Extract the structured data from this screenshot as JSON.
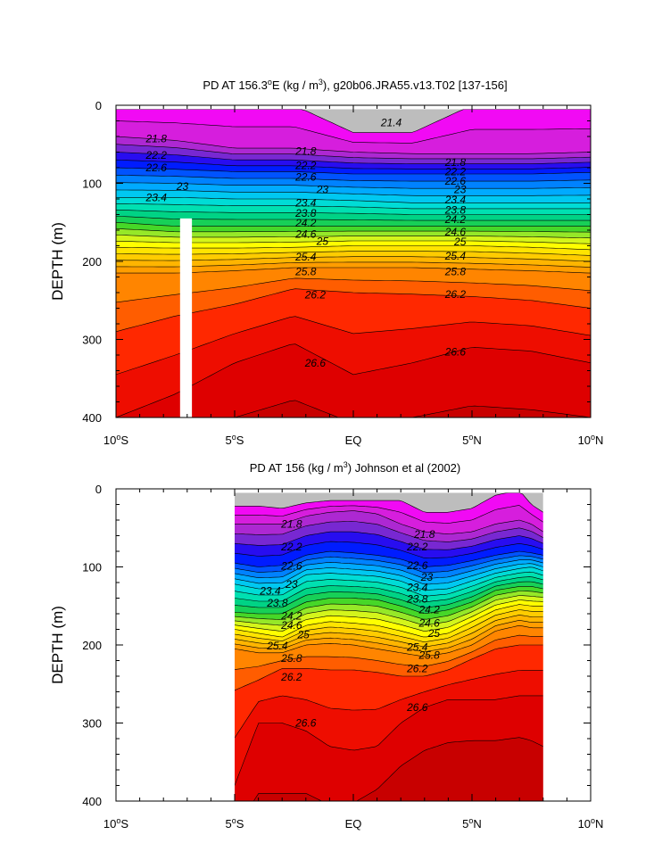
{
  "chart_data": [
    {
      "type": "heatmap",
      "title_main": "PD AT 156.3",
      "title_deg": "o",
      "title_mid": "E (kg / m",
      "title_exp": "3",
      "title_rest": "), g20b06.JRA55.v13.T02 [137-156]",
      "ylabel": "DEPTH (m)",
      "xlim": [
        -10,
        10
      ],
      "ylim": [
        0,
        400
      ],
      "x_ticks": [
        {
          "value": -10,
          "num": "10",
          "deg": "o",
          "hemi": "S"
        },
        {
          "value": -5,
          "num": "5",
          "deg": "o",
          "hemi": "S"
        },
        {
          "value": 0,
          "num": "EQ",
          "deg": "",
          "hemi": ""
        },
        {
          "value": 5,
          "num": "5",
          "deg": "o",
          "hemi": "N"
        },
        {
          "value": 10,
          "num": "10",
          "deg": "o",
          "hemi": "N"
        }
      ],
      "y_ticks": [
        "0",
        "100",
        "200",
        "300",
        "400"
      ],
      "data_x_range": [
        -10,
        10
      ],
      "data_top_depth": 5,
      "gap_band": {
        "x": [
          -7.3,
          -6.8
        ],
        "y": [
          145,
          400
        ]
      },
      "contour_levels": [
        21.4,
        21.6,
        21.8,
        22,
        22.2,
        22.4,
        22.6,
        22.8,
        23,
        23.2,
        23.4,
        23.6,
        23.8,
        24,
        24.2,
        24.4,
        24.6,
        24.8,
        25,
        25.2,
        25.4,
        25.6,
        25.8,
        26,
        26.2,
        26.4,
        26.6,
        26.8
      ],
      "depth_profile": {
        "x": [
          -10,
          -7.5,
          -5,
          -2.5,
          0,
          2.5,
          5,
          7.5,
          10
        ],
        "anchors": [
          {
            "level": 21.4,
            "depths": [
              0,
              0,
              0,
              0,
              35,
              35,
              0,
              0,
              0
            ]
          },
          {
            "level": 21.8,
            "depths": [
              40,
              45,
              55,
              55,
              60,
              62,
              62,
              62,
              60
            ]
          },
          {
            "level": 22.6,
            "depths": [
              80,
              82,
              85,
              85,
              88,
              88,
              88,
              88,
              86
            ]
          },
          {
            "level": 23.4,
            "depths": [
              118,
              118,
              120,
              120,
              122,
              125,
              125,
              125,
              125
            ]
          },
          {
            "level": 24.2,
            "depths": [
              150,
              155,
              155,
              155,
              155,
              155,
              155,
              155,
              155
            ]
          },
          {
            "level": 25.0,
            "depths": [
              182,
              183,
              183,
              182,
              180,
              180,
              180,
              182,
              185
            ]
          },
          {
            "level": 25.8,
            "depths": [
              215,
              215,
              212,
              208,
              208,
              208,
              210,
              212,
              215
            ]
          },
          {
            "level": 26.2,
            "depths": [
              290,
              270,
              255,
              235,
              240,
              242,
              245,
              250,
              260
            ]
          },
          {
            "level": 26.6,
            "depths": [
              400,
              370,
              330,
              305,
              345,
              330,
              310,
              315,
              330
            ]
          },
          {
            "level": 27.0,
            "depths": [
              480,
              480,
              470,
              450,
              470,
              470,
              460,
              465,
              470
            ]
          }
        ]
      },
      "contour_labels": [
        {
          "text": "21.4",
          "x": 1.6,
          "y": 22
        },
        {
          "text": "21.8",
          "x": -8.3,
          "y": 43
        },
        {
          "text": "22.2",
          "x": -8.3,
          "y": 64
        },
        {
          "text": "22.6",
          "x": -8.3,
          "y": 80
        },
        {
          "text": "23",
          "x": -7.2,
          "y": 104
        },
        {
          "text": "23.4",
          "x": -8.3,
          "y": 118
        },
        {
          "text": "21.8",
          "x": -2,
          "y": 59
        },
        {
          "text": "22.2",
          "x": -2,
          "y": 77
        },
        {
          "text": "22.6",
          "x": -2,
          "y": 92
        },
        {
          "text": "23",
          "x": -1.3,
          "y": 108
        },
        {
          "text": "23.4",
          "x": -2,
          "y": 125
        },
        {
          "text": "23.8",
          "x": -2,
          "y": 138
        },
        {
          "text": "24.2",
          "x": -2,
          "y": 151
        },
        {
          "text": "24.6",
          "x": -2,
          "y": 165
        },
        {
          "text": "25",
          "x": -1.3,
          "y": 174
        },
        {
          "text": "25.4",
          "x": -2,
          "y": 194
        },
        {
          "text": "25.8",
          "x": -2,
          "y": 213
        },
        {
          "text": "26.2",
          "x": -1.6,
          "y": 243
        },
        {
          "text": "26.6",
          "x": -1.6,
          "y": 330
        },
        {
          "text": "21.8",
          "x": 4.3,
          "y": 73
        },
        {
          "text": "22.2",
          "x": 4.3,
          "y": 85
        },
        {
          "text": "22.6",
          "x": 4.3,
          "y": 97
        },
        {
          "text": "23",
          "x": 4.5,
          "y": 108
        },
        {
          "text": "23.4",
          "x": 4.3,
          "y": 121
        },
        {
          "text": "23.8",
          "x": 4.3,
          "y": 134
        },
        {
          "text": "24.2",
          "x": 4.3,
          "y": 146
        },
        {
          "text": "24.6",
          "x": 4.3,
          "y": 162
        },
        {
          "text": "25",
          "x": 4.5,
          "y": 175
        },
        {
          "text": "25.4",
          "x": 4.3,
          "y": 193
        },
        {
          "text": "25.8",
          "x": 4.3,
          "y": 213
        },
        {
          "text": "26.2",
          "x": 4.3,
          "y": 242
        },
        {
          "text": "26.6",
          "x": 4.3,
          "y": 316
        }
      ]
    },
    {
      "type": "heatmap",
      "title_main": "PD AT 156 (kg / m",
      "title_exp": "3",
      "title_rest": ") Johnson et al (2002)",
      "ylabel": "DEPTH (m)",
      "xlim": [
        -10,
        10
      ],
      "ylim": [
        0,
        400
      ],
      "x_ticks": [
        {
          "value": -10,
          "num": "10",
          "deg": "o",
          "hemi": "S"
        },
        {
          "value": -5,
          "num": "5",
          "deg": "o",
          "hemi": "S"
        },
        {
          "value": 0,
          "num": "EQ",
          "deg": "",
          "hemi": ""
        },
        {
          "value": 5,
          "num": "5",
          "deg": "o",
          "hemi": "N"
        },
        {
          "value": 10,
          "num": "10",
          "deg": "o",
          "hemi": "N"
        }
      ],
      "y_ticks": [
        "0",
        "100",
        "200",
        "300",
        "400"
      ],
      "data_x_range": [
        -5,
        8
      ],
      "data_top_depth": 5,
      "contour_levels": [
        21.4,
        21.6,
        21.8,
        22,
        22.2,
        22.4,
        22.6,
        22.8,
        23,
        23.2,
        23.4,
        23.6,
        23.8,
        24,
        24.2,
        24.4,
        24.6,
        24.8,
        25,
        25.2,
        25.4,
        25.6,
        25.8,
        26,
        26.2,
        26.4,
        26.6,
        26.8
      ],
      "depth_profile": {
        "x": [
          -5,
          -4,
          -3,
          -2,
          -1,
          0,
          1,
          2,
          3,
          4,
          5,
          6,
          7,
          7.5,
          8
        ],
        "anchors": [
          {
            "level": 21.4,
            "depths": [
              22,
              22,
              25,
              18,
              15,
              15,
              15,
              15,
              30,
              30,
              25,
              8,
              2,
              20,
              30
            ]
          },
          {
            "level": 21.8,
            "depths": [
              45,
              45,
              45,
              35,
              30,
              28,
              32,
              45,
              55,
              58,
              55,
              45,
              40,
              45,
              55
            ]
          },
          {
            "level": 22.6,
            "depths": [
              95,
              100,
              98,
              85,
              80,
              82,
              85,
              90,
              100,
              98,
              92,
              85,
              80,
              82,
              85
            ]
          },
          {
            "level": 23.4,
            "depths": [
              122,
              128,
              128,
              110,
              108,
              110,
              112,
              118,
              130,
              128,
              118,
              108,
              102,
              100,
              105
            ]
          },
          {
            "level": 24.2,
            "depths": [
              158,
              160,
              160,
              145,
              140,
              140,
              142,
              150,
              160,
              155,
              145,
              130,
              125,
              125,
              128
            ]
          },
          {
            "level": 25.0,
            "depths": [
              180,
              185,
              190,
              175,
              170,
              172,
              175,
              182,
              190,
              185,
              170,
              155,
              148,
              150,
              150
            ]
          },
          {
            "level": 25.8,
            "depths": [
              205,
              210,
              210,
              200,
              198,
              200,
              205,
              210,
              215,
              210,
              200,
              182,
              175,
              178,
              178
            ]
          },
          {
            "level": 26.2,
            "depths": [
              258,
              245,
              230,
              230,
              232,
              232,
              235,
              240,
              240,
              232,
              218,
              205,
              200,
              200,
              200
            ]
          },
          {
            "level": 26.6,
            "depths": [
              380,
              300,
              300,
              310,
              330,
              335,
              330,
              300,
              280,
              270,
              270,
              270,
              265,
              265,
              265
            ]
          },
          {
            "level": 27.0,
            "depths": [
              500,
              480,
              480,
              470,
              480,
              470,
              440,
              410,
              390,
              380,
              375,
              375,
              372,
              380,
              395
            ]
          }
        ]
      },
      "contour_labels": [
        {
          "text": "21.8",
          "x": -2.6,
          "y": 45
        },
        {
          "text": "22.2",
          "x": -2.6,
          "y": 74
        },
        {
          "text": "22.6",
          "x": -2.6,
          "y": 99
        },
        {
          "text": "23",
          "x": -2.6,
          "y": 122
        },
        {
          "text": "23.4",
          "x": -3.5,
          "y": 131
        },
        {
          "text": "23.8",
          "x": -3.2,
          "y": 146
        },
        {
          "text": "24.2",
          "x": -2.6,
          "y": 163
        },
        {
          "text": "24.6",
          "x": -2.6,
          "y": 175
        },
        {
          "text": "25",
          "x": -2.1,
          "y": 187
        },
        {
          "text": "25.4",
          "x": -3.2,
          "y": 201
        },
        {
          "text": "25.8",
          "x": -2.6,
          "y": 217
        },
        {
          "text": "26.2",
          "x": -2.6,
          "y": 241
        },
        {
          "text": "26.6",
          "x": -2,
          "y": 300
        },
        {
          "text": "21.8",
          "x": 3,
          "y": 58
        },
        {
          "text": "22.2",
          "x": 2.7,
          "y": 74
        },
        {
          "text": "22.6",
          "x": 2.7,
          "y": 98
        },
        {
          "text": "23",
          "x": 3.1,
          "y": 113
        },
        {
          "text": "23.4",
          "x": 2.7,
          "y": 126
        },
        {
          "text": "23.8",
          "x": 2.7,
          "y": 141
        },
        {
          "text": "24.2",
          "x": 3.2,
          "y": 155
        },
        {
          "text": "24.6",
          "x": 3.2,
          "y": 172
        },
        {
          "text": "25",
          "x": 3.4,
          "y": 185
        },
        {
          "text": "25.4",
          "x": 2.7,
          "y": 203
        },
        {
          "text": "25.8",
          "x": 3.2,
          "y": 213
        },
        {
          "text": "26.2",
          "x": 2.7,
          "y": 230
        },
        {
          "text": "26.6",
          "x": 2.7,
          "y": 280
        }
      ]
    }
  ]
}
